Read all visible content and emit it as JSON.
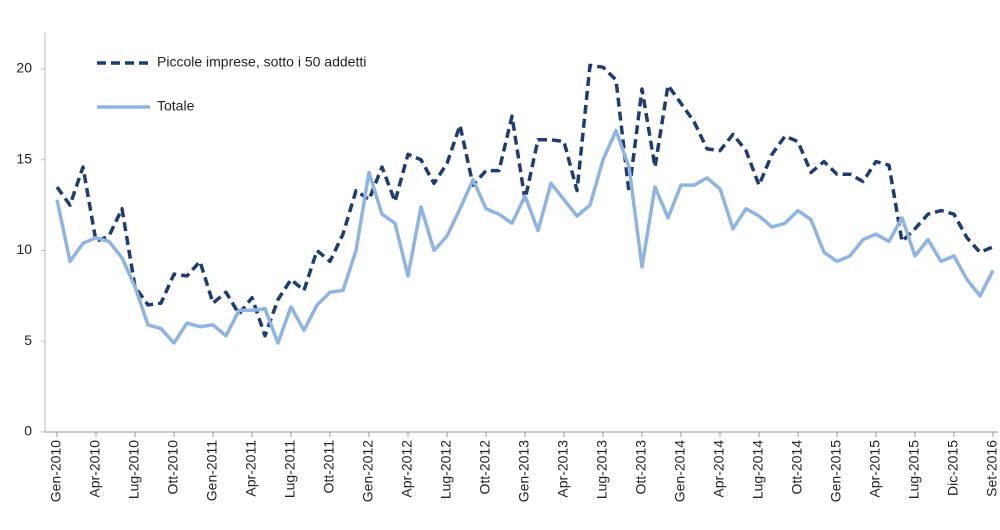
{
  "chart_data": {
    "type": "line",
    "categories": [
      "Gen-2010",
      null,
      null,
      "Apr-2010",
      null,
      null,
      "Lug-2010",
      null,
      null,
      "Ott-2010",
      null,
      null,
      "Gen-2011",
      null,
      null,
      "Apr-2011",
      null,
      null,
      "Lug-2011",
      null,
      null,
      "Ott-2011",
      null,
      null,
      "Gen-2012",
      null,
      null,
      "Apr-2012",
      null,
      null,
      "Lug-2012",
      null,
      null,
      "Ott-2012",
      null,
      null,
      "Gen-2013",
      null,
      null,
      "Apr-2013",
      null,
      null,
      "Lug-2013",
      null,
      null,
      "Ott-2013",
      null,
      null,
      "Gen-2014",
      null,
      null,
      "Apr-2014",
      null,
      null,
      "Lug-2014",
      null,
      null,
      "Ott-2014",
      null,
      null,
      "Gen-2015",
      null,
      null,
      "Apr-2015",
      null,
      null,
      "Lug-2015",
      null,
      null,
      "Dic-2015",
      null,
      null,
      "Set-2016"
    ],
    "series": [
      {
        "name": "Piccole imprese, sotto i 50 addetti",
        "color": "#1f3d6e",
        "dashed": true,
        "values": [
          13.5,
          12.5,
          14.6,
          10.5,
          10.8,
          12.3,
          8.0,
          7.0,
          7.1,
          8.7,
          8.6,
          9.4,
          7.1,
          7.7,
          6.5,
          7.4,
          5.3,
          7.3,
          8.4,
          7.8,
          10.0,
          9.4,
          10.9,
          13.3,
          12.8,
          14.6,
          12.7,
          15.3,
          15.0,
          13.7,
          14.8,
          16.9,
          13.6,
          14.4,
          14.4,
          17.4,
          12.8,
          16.1,
          16.1,
          16.0,
          13.3,
          20.2,
          20.1,
          19.4,
          13.2,
          18.9,
          14.6,
          19.1,
          18.1,
          17.1,
          15.6,
          15.5,
          16.4,
          15.5,
          13.6,
          15.3,
          16.3,
          16.0,
          14.3,
          14.9,
          14.2,
          14.2,
          13.8,
          14.9,
          14.7,
          10.5,
          11.2,
          12.0,
          12.2,
          12.0,
          10.7,
          9.9,
          10.2
        ]
      },
      {
        "name": "Totale",
        "color": "#8eb4e3",
        "dashed": false,
        "values": [
          12.8,
          9.4,
          10.4,
          10.7,
          10.5,
          9.6,
          8.0,
          5.9,
          5.7,
          4.9,
          6.0,
          5.8,
          5.9,
          5.3,
          6.7,
          6.7,
          6.8,
          4.9,
          6.9,
          5.6,
          7.0,
          7.7,
          7.8,
          10.0,
          14.3,
          12.0,
          11.5,
          8.6,
          12.4,
          10.0,
          10.8,
          12.3,
          13.9,
          12.3,
          12.0,
          11.5,
          13.0,
          11.1,
          13.7,
          12.8,
          11.9,
          12.5,
          15.0,
          16.6,
          14.6,
          9.1,
          13.5,
          11.8,
          13.6,
          13.6,
          14.0,
          13.4,
          11.2,
          12.3,
          11.9,
          11.3,
          11.5,
          12.2,
          11.7,
          9.9,
          9.4,
          9.7,
          10.6,
          10.9,
          10.5,
          11.8,
          9.7,
          10.6,
          9.4,
          9.7,
          8.4,
          7.5,
          8.9
        ]
      }
    ],
    "ylim": [
      0,
      22
    ],
    "yticks": [
      0,
      5,
      10,
      15,
      20
    ],
    "grid": false
  }
}
